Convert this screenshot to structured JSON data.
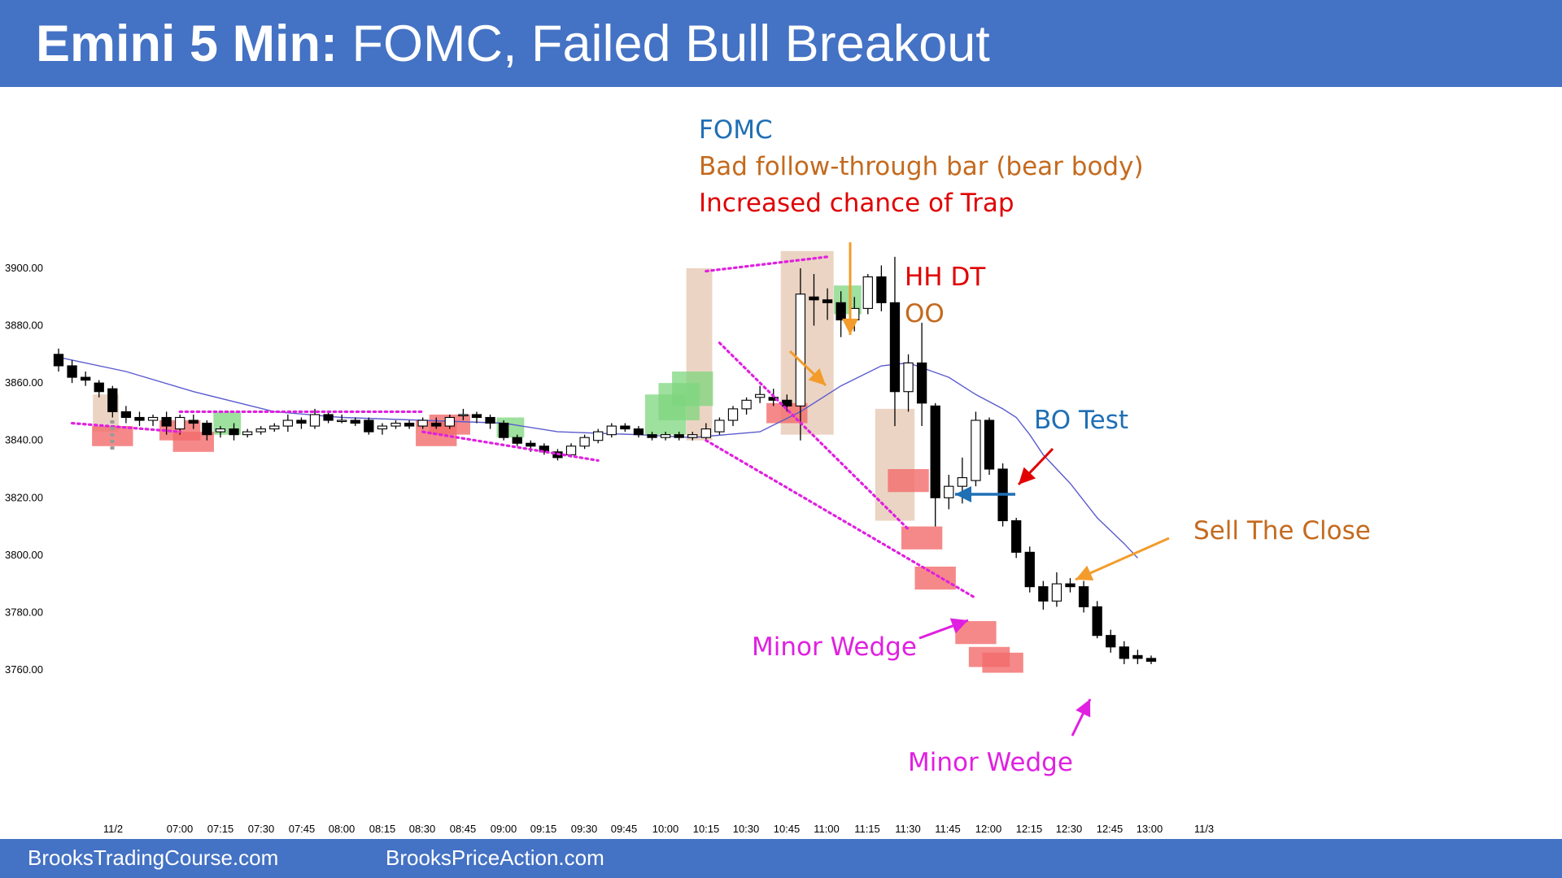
{
  "title": {
    "bold": "Emini 5 Min:",
    "rest": " FOMC, Failed Bull Breakout"
  },
  "footer": {
    "left": "BrooksTradingCourse.com",
    "right": "BrooksPriceAction.com"
  },
  "colors": {
    "header": "#4472C4",
    "bull_zone": "#7ED67E",
    "bear_zone": "#F36B6B",
    "highlight": "#E8CDB8",
    "wedge_line": "#E020E0",
    "ema": "#5B5BCF",
    "blue_text": "#1F6FB5",
    "orange_text": "#C46A1E",
    "red_text": "#E00000",
    "magenta_text": "#E020E0"
  },
  "chart_data": {
    "type": "candlestick",
    "y_ticks": [
      "3900.00",
      "3880.00",
      "3860.00",
      "3840.00",
      "3820.00",
      "3800.00",
      "3780.00",
      "3760.00"
    ],
    "ylim": [
      3735,
      3920
    ],
    "x_ticks": [
      "11/2",
      "07:00",
      "07:15",
      "07:30",
      "07:45",
      "08:00",
      "08:15",
      "08:30",
      "08:45",
      "09:00",
      "09:15",
      "09:30",
      "09:45",
      "10:00",
      "10:15",
      "10:30",
      "10:45",
      "11:00",
      "11:15",
      "11:30",
      "11:45",
      "12:00",
      "12:15",
      "12:30",
      "12:45",
      "13:00",
      "11/3"
    ],
    "bars": [
      [
        3870,
        3866,
        3872,
        3864
      ],
      [
        3866,
        3862,
        3868,
        3860
      ],
      [
        3862,
        3861,
        3864,
        3859
      ],
      [
        3860,
        3857,
        3861,
        3855
      ],
      [
        3858,
        3850,
        3859,
        3848
      ],
      [
        3850,
        3848,
        3852,
        3846
      ],
      [
        3848,
        3847,
        3850,
        3845
      ],
      [
        3847,
        3848,
        3849,
        3845
      ],
      [
        3848,
        3845,
        3850,
        3842
      ],
      [
        3844,
        3848,
        3849,
        3842
      ],
      [
        3847,
        3846,
        3849,
        3844
      ],
      [
        3846,
        3842,
        3847,
        3840
      ],
      [
        3843,
        3844,
        3845,
        3841
      ],
      [
        3844,
        3842,
        3846,
        3840
      ],
      [
        3842,
        3843,
        3844,
        3841
      ],
      [
        3843,
        3844,
        3845,
        3842
      ],
      [
        3844,
        3845,
        3846,
        3843
      ],
      [
        3845,
        3847,
        3849,
        3843
      ],
      [
        3847,
        3846,
        3848,
        3844
      ],
      [
        3845,
        3849,
        3851,
        3844
      ],
      [
        3849,
        3847,
        3850,
        3846
      ],
      [
        3847,
        3847,
        3849,
        3846
      ],
      [
        3847,
        3846,
        3848,
        3845
      ],
      [
        3847,
        3843,
        3848,
        3842
      ],
      [
        3844,
        3845,
        3846,
        3842
      ],
      [
        3845,
        3846,
        3847,
        3844
      ],
      [
        3846,
        3845,
        3847,
        3844
      ],
      [
        3845,
        3847,
        3848,
        3844
      ],
      [
        3846,
        3845,
        3848,
        3844
      ],
      [
        3845,
        3848,
        3849,
        3844
      ],
      [
        3849,
        3849,
        3851,
        3847
      ],
      [
        3849,
        3848,
        3850,
        3846
      ],
      [
        3848,
        3846,
        3849,
        3844
      ],
      [
        3846,
        3841,
        3847,
        3840
      ],
      [
        3841,
        3839,
        3842,
        3838
      ],
      [
        3839,
        3838,
        3840,
        3836
      ],
      [
        3838,
        3836,
        3839,
        3835
      ],
      [
        3836,
        3834,
        3837,
        3833
      ],
      [
        3835,
        3838,
        3839,
        3834
      ],
      [
        3838,
        3841,
        3842,
        3837
      ],
      [
        3840,
        3843,
        3844,
        3839
      ],
      [
        3842,
        3845,
        3846,
        3841
      ],
      [
        3845,
        3844,
        3846,
        3843
      ],
      [
        3844,
        3842,
        3845,
        3841
      ],
      [
        3842,
        3841,
        3843,
        3840
      ],
      [
        3841,
        3842,
        3843,
        3840
      ],
      [
        3842,
        3841,
        3843,
        3840
      ],
      [
        3841,
        3842,
        3843,
        3840
      ],
      [
        3841,
        3844,
        3846,
        3840
      ],
      [
        3843,
        3847,
        3848,
        3842
      ],
      [
        3847,
        3851,
        3852,
        3845
      ],
      [
        3851,
        3854,
        3855,
        3849
      ],
      [
        3855,
        3856,
        3859,
        3853
      ],
      [
        3855,
        3854,
        3858,
        3852
      ],
      [
        3854,
        3852,
        3856,
        3850
      ],
      [
        3852,
        3891,
        3900,
        3840
      ],
      [
        3890,
        3889,
        3898,
        3880
      ],
      [
        3889,
        3888,
        3893,
        3882
      ],
      [
        3888,
        3882,
        3892,
        3876
      ],
      [
        3882,
        3886,
        3890,
        3878
      ],
      [
        3886,
        3897,
        3898,
        3884
      ],
      [
        3897,
        3888,
        3901,
        3885
      ],
      [
        3888,
        3857,
        3904,
        3845
      ],
      [
        3857,
        3867,
        3870,
        3850
      ],
      [
        3867,
        3853,
        3881,
        3845
      ],
      [
        3852,
        3820,
        3853,
        3810
      ],
      [
        3820,
        3824,
        3828,
        3816
      ],
      [
        3824,
        3827,
        3834,
        3818
      ],
      [
        3826,
        3847,
        3850,
        3824
      ],
      [
        3847,
        3830,
        3848,
        3828
      ],
      [
        3830,
        3812,
        3832,
        3810
      ],
      [
        3812,
        3801,
        3813,
        3799
      ],
      [
        3801,
        3789,
        3803,
        3787
      ],
      [
        3789,
        3784,
        3791,
        3781
      ],
      [
        3784,
        3790,
        3794,
        3782
      ],
      [
        3790,
        3789,
        3792,
        3787
      ],
      [
        3789,
        3782,
        3791,
        3780
      ],
      [
        3782,
        3772,
        3784,
        3771
      ],
      [
        3772,
        3768,
        3774,
        3766
      ],
      [
        3768,
        3764,
        3770,
        3762
      ],
      [
        3765,
        3764,
        3767,
        3762
      ],
      [
        3764,
        3763,
        3765,
        3762
      ]
    ],
    "ema": [
      [
        0,
        3869
      ],
      [
        5,
        3864
      ],
      [
        10,
        3857
      ],
      [
        16,
        3850
      ],
      [
        21,
        3848
      ],
      [
        27,
        3847
      ],
      [
        33,
        3846
      ],
      [
        37,
        3843
      ],
      [
        43,
        3842
      ],
      [
        47,
        3841
      ],
      [
        52,
        3843
      ],
      [
        55,
        3850
      ],
      [
        58,
        3859
      ],
      [
        61,
        3866
      ],
      [
        63,
        3867
      ],
      [
        66,
        3862
      ],
      [
        68,
        3856
      ],
      [
        70,
        3851
      ],
      [
        71,
        3848
      ],
      [
        72,
        3842
      ],
      [
        73,
        3835
      ],
      [
        75,
        3825
      ],
      [
        77,
        3813
      ],
      [
        79,
        3804
      ],
      [
        80,
        3799
      ]
    ],
    "bull_zones": [
      [
        12,
        13,
        3842,
        3850
      ],
      [
        33,
        34,
        3841,
        3848
      ],
      [
        44,
        46,
        3842,
        3856
      ],
      [
        45,
        47,
        3847,
        3860
      ],
      [
        46,
        48,
        3852,
        3864
      ],
      [
        58,
        59,
        3884,
        3894
      ]
    ],
    "bear_zones": [
      [
        3,
        5,
        3838,
        3845
      ],
      [
        8,
        10,
        3840,
        3847
      ],
      [
        9,
        11,
        3836,
        3843
      ],
      [
        27,
        29,
        3838,
        3847
      ],
      [
        28,
        30,
        3842,
        3849
      ],
      [
        53,
        55,
        3846,
        3853
      ],
      [
        62,
        64,
        3822,
        3830
      ],
      [
        63,
        65,
        3802,
        3810
      ],
      [
        64,
        66,
        3788,
        3796
      ],
      [
        67,
        69,
        3769,
        3777
      ],
      [
        68,
        70,
        3761,
        3768
      ],
      [
        69,
        71,
        3759,
        3766
      ]
    ],
    "highlights": [
      [
        3,
        4,
        3843,
        3856
      ],
      [
        47,
        48,
        3840,
        3900
      ],
      [
        54,
        57,
        3842,
        3906
      ],
      [
        61,
        63,
        3812,
        3851
      ]
    ],
    "wedge_lines": [
      [
        [
          1,
          3846
        ],
        [
          9,
          3843
        ]
      ],
      [
        [
          9,
          3850
        ],
        [
          27,
          3850
        ]
      ],
      [
        [
          27,
          3843
        ],
        [
          40,
          3833
        ]
      ],
      [
        [
          48,
          3899
        ],
        [
          57,
          3904
        ]
      ],
      [
        [
          48,
          3840
        ],
        [
          68,
          3785
        ]
      ],
      [
        [
          49,
          3874
        ],
        [
          63,
          3809
        ]
      ]
    ],
    "annotations": {
      "fomc": "FOMC",
      "bad_ft": "Bad follow-through bar (bear body)",
      "trap": "Increased chance of Trap",
      "hhdt": "HH DT",
      "oo": "OO",
      "bo_test": "BO Test",
      "stc": "Sell The Close",
      "wedge1": "Minor Wedge",
      "wedge2": "Minor Wedge"
    }
  }
}
